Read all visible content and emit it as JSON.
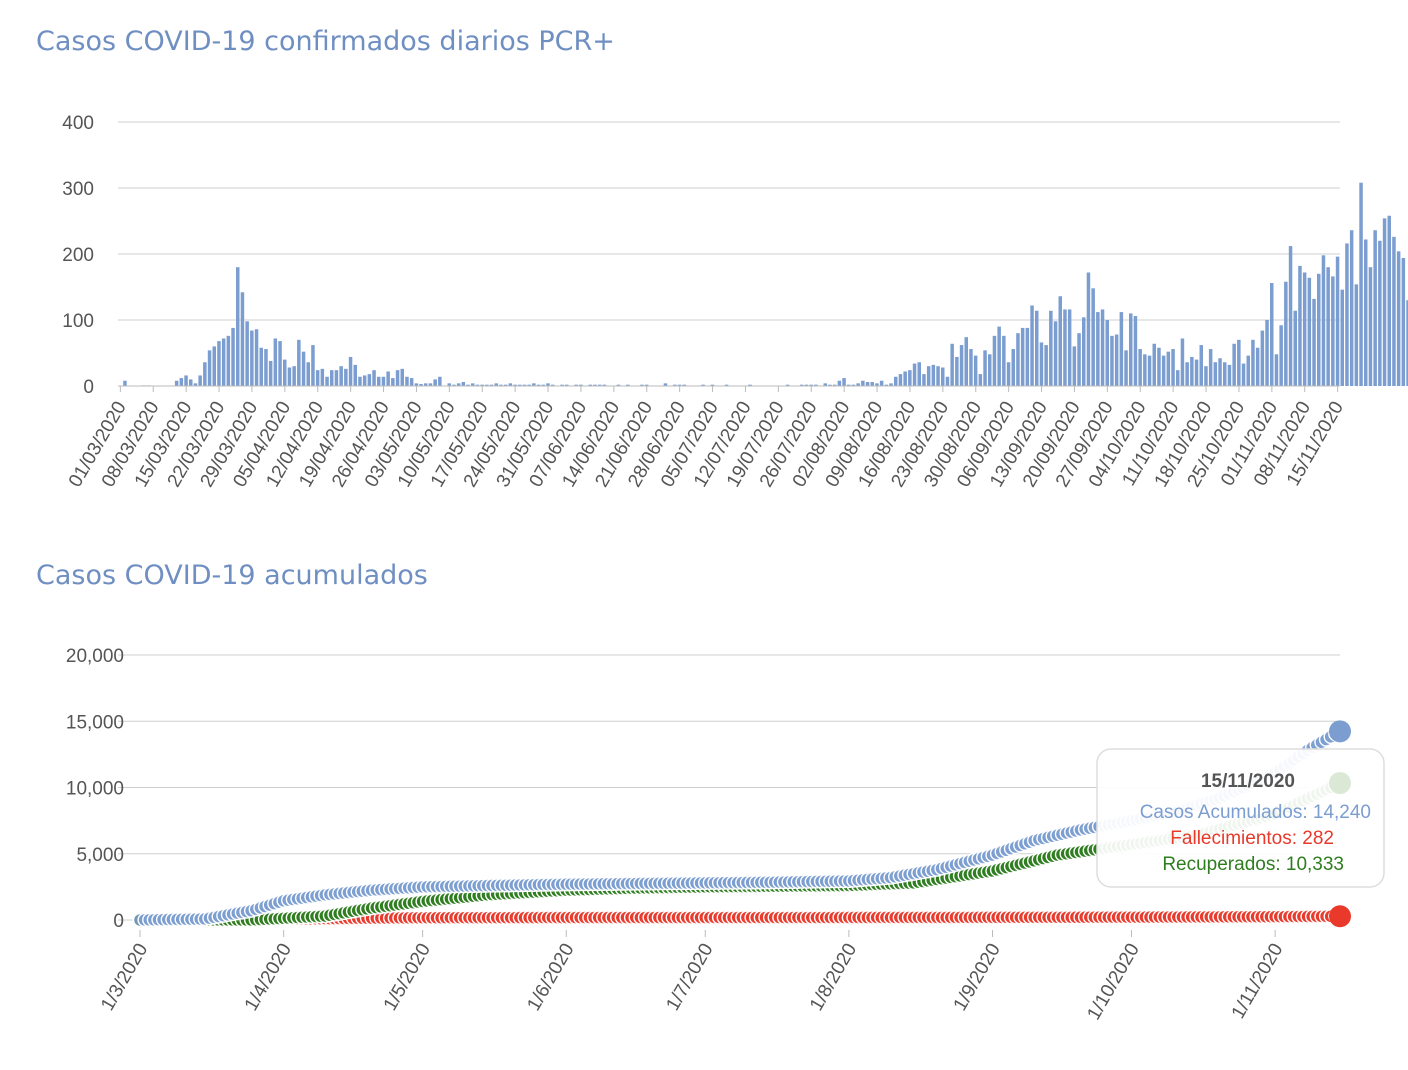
{
  "chart_data": [
    {
      "type": "bar",
      "title": "Casos COVID-19 confirmados diarios PCR+",
      "xlabel": "",
      "ylabel": "",
      "ylim": [
        0,
        400
      ],
      "yticks": [
        "0",
        "100",
        "200",
        "300",
        "400"
      ],
      "grid": true,
      "color": "#7b9dd0",
      "start_date": "2020-03-01",
      "x_tick_labels": [
        "01/03/2020",
        "08/03/2020",
        "15/03/2020",
        "22/03/2020",
        "29/03/2020",
        "05/04/2020",
        "12/04/2020",
        "19/04/2020",
        "26/04/2020",
        "03/05/2020",
        "10/05/2020",
        "17/05/2020",
        "24/05/2020",
        "31/05/2020",
        "07/06/2020",
        "14/06/2020",
        "21/06/2020",
        "28/06/2020",
        "05/07/2020",
        "12/07/2020",
        "19/07/2020",
        "26/07/2020",
        "02/08/2020",
        "09/08/2020",
        "16/08/2020",
        "23/08/2020",
        "30/08/2020",
        "06/09/2020",
        "13/09/2020",
        "20/09/2020",
        "27/09/2020",
        "04/10/2020",
        "11/10/2020",
        "18/10/2020",
        "25/10/2020",
        "01/11/2020",
        "08/11/2020",
        "15/11/2020"
      ],
      "values": [
        0,
        8,
        0,
        0,
        0,
        1,
        1,
        0,
        0,
        0,
        0,
        0,
        8,
        12,
        16,
        10,
        4,
        16,
        36,
        54,
        60,
        68,
        72,
        76,
        88,
        180,
        142,
        98,
        84,
        86,
        58,
        56,
        38,
        72,
        68,
        40,
        28,
        30,
        70,
        52,
        36,
        62,
        24,
        26,
        14,
        24,
        24,
        30,
        26,
        44,
        32,
        14,
        16,
        18,
        24,
        14,
        14,
        22,
        12,
        24,
        26,
        14,
        12,
        4,
        3,
        4,
        4,
        10,
        14,
        0,
        4,
        2,
        4,
        6,
        2,
        4,
        2,
        2,
        2,
        2,
        4,
        2,
        2,
        4,
        2,
        2,
        2,
        2,
        4,
        2,
        2,
        4,
        2,
        0,
        2,
        2,
        0,
        2,
        2,
        0,
        2,
        2,
        2,
        2,
        0,
        0,
        2,
        0,
        2,
        0,
        0,
        2,
        2,
        0,
        0,
        0,
        4,
        0,
        2,
        2,
        2,
        0,
        0,
        0,
        2,
        0,
        2,
        0,
        0,
        2,
        0,
        0,
        0,
        0,
        2,
        0,
        0,
        0,
        0,
        0,
        0,
        0,
        2,
        0,
        0,
        2,
        2,
        2,
        2,
        0,
        4,
        2,
        2,
        8,
        12,
        2,
        2,
        4,
        8,
        6,
        6,
        4,
        8,
        2,
        4,
        14,
        18,
        22,
        24,
        34,
        36,
        18,
        30,
        32,
        30,
        28,
        14,
        64,
        44,
        62,
        74,
        56,
        46,
        18,
        54,
        48,
        76,
        90,
        76,
        36,
        56,
        80,
        88,
        88,
        122,
        114,
        66,
        62,
        114,
        98,
        136,
        116,
        116,
        60,
        80,
        104,
        172,
        148,
        112,
        116,
        100,
        76,
        78,
        112,
        54,
        110,
        106,
        56,
        48,
        46,
        64,
        58,
        46,
        52,
        56,
        24,
        72,
        36,
        44,
        40,
        62,
        30,
        56,
        36,
        42,
        36,
        32,
        64,
        70,
        34,
        46,
        70,
        58,
        84,
        100,
        156,
        48,
        92,
        158,
        212,
        114,
        182,
        172,
        164,
        132,
        170,
        198,
        180,
        166,
        196,
        146,
        216,
        236,
        154,
        308,
        222,
        180,
        236,
        220,
        254,
        258,
        226,
        204,
        194,
        130
      ]
    },
    {
      "type": "scatter",
      "title": "Casos COVID-19 acumulados",
      "xlabel": "",
      "ylabel": "",
      "ylim": [
        0,
        20000
      ],
      "yticks": [
        "0",
        "5,000",
        "10,000",
        "15,000",
        "20,000"
      ],
      "x_tick_labels": [
        "1/3/2020",
        "1/4/2020",
        "1/5/2020",
        "1/6/2020",
        "1/7/2020",
        "1/8/2020",
        "1/9/2020",
        "1/10/2020",
        "1/11/2020"
      ],
      "grid": true,
      "legend": "none",
      "series": [
        {
          "name": "Casos Acumulados",
          "color": "#7b9dd0",
          "x": [
            "2020-03-01",
            "2020-03-15",
            "2020-03-25",
            "2020-04-01",
            "2020-04-10",
            "2020-04-20",
            "2020-05-01",
            "2020-05-15",
            "2020-06-01",
            "2020-06-15",
            "2020-07-01",
            "2020-07-15",
            "2020-08-01",
            "2020-08-10",
            "2020-08-20",
            "2020-09-01",
            "2020-09-10",
            "2020-09-20",
            "2020-10-01",
            "2020-10-10",
            "2020-10-20",
            "2020-11-01",
            "2020-11-08",
            "2020-11-15"
          ],
          "y": [
            0,
            80,
            700,
            1450,
            1900,
            2250,
            2500,
            2600,
            2700,
            2750,
            2800,
            2850,
            2950,
            3200,
            3800,
            4900,
            6000,
            6800,
            7500,
            8100,
            9200,
            11100,
            12800,
            14240
          ]
        },
        {
          "name": "Fallecimientos",
          "color": "#e8392b",
          "x": [
            "2020-03-01",
            "2020-03-20",
            "2020-04-01",
            "2020-04-20",
            "2020-05-01",
            "2020-06-01",
            "2020-08-01",
            "2020-09-01",
            "2020-10-01",
            "2020-11-01",
            "2020-11-15"
          ],
          "y": [
            0,
            0,
            60,
            140,
            170,
            185,
            190,
            200,
            215,
            250,
            282
          ]
        },
        {
          "name": "Recuperados",
          "color": "#2e7d1e",
          "x": [
            "2020-03-01",
            "2020-03-25",
            "2020-04-10",
            "2020-04-20",
            "2020-05-01",
            "2020-05-15",
            "2020-06-01",
            "2020-06-15",
            "2020-07-01",
            "2020-08-01",
            "2020-08-15",
            "2020-09-01",
            "2020-09-15",
            "2020-10-01",
            "2020-10-15",
            "2020-11-01",
            "2020-11-15"
          ],
          "y": [
            0,
            0,
            300,
            900,
            1400,
            1900,
            2250,
            2400,
            2500,
            2600,
            2800,
            3700,
            4900,
            5700,
            6400,
            8000,
            10333
          ]
        }
      ],
      "tooltip": {
        "date": "15/11/2020",
        "lines": [
          {
            "label": "Casos Acumulados: 14,240",
            "color": "#7b9dd0"
          },
          {
            "label": "Fallecimientos: 282",
            "color": "#e8392b"
          },
          {
            "label": "Recuperados: 10,333",
            "color": "#2e7d1e"
          }
        ]
      }
    }
  ]
}
